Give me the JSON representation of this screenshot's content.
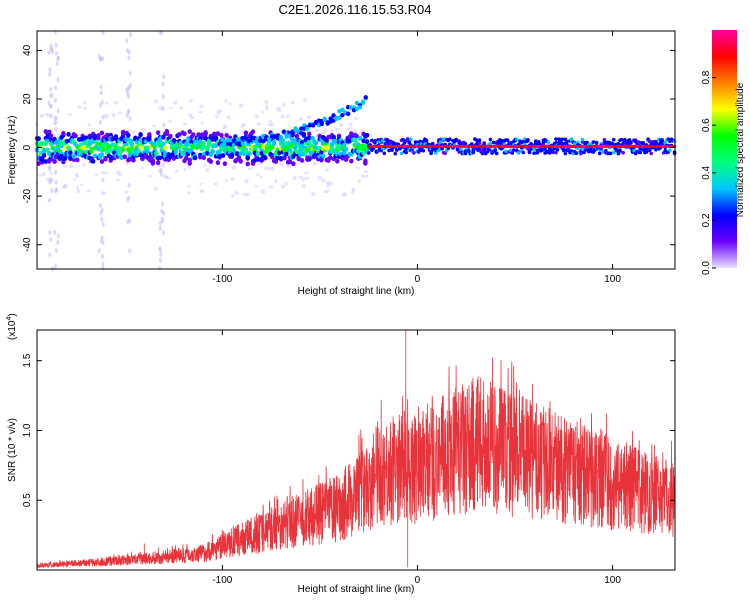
{
  "figure_title": "C2E1.2026.116.15.53.R04",
  "chart_data": [
    {
      "type": "heatmap",
      "name": "spectrogram",
      "xlabel": "Height of straight line (km)",
      "ylabel": "Frequency (Hz)",
      "xlim": [
        -195,
        132
      ],
      "ylim": [
        -50,
        48
      ],
      "xticks": [
        "-100",
        "0",
        "100"
      ],
      "xtick_values": [
        -100,
        0,
        100
      ],
      "yticks": [
        "40",
        "20",
        "0",
        "-20",
        "-40"
      ],
      "ytick_values": [
        40,
        20,
        0,
        -20,
        -40
      ],
      "colorbar": {
        "label": "Normalized spectral amplitude",
        "range": [
          0,
          1
        ],
        "ticks": [
          "0.0",
          "0.2",
          "0.4",
          "0.6",
          "0.8"
        ],
        "tick_values": [
          0.0,
          0.2,
          0.4,
          0.6,
          0.8
        ],
        "colormap": [
          "#e8e0ff",
          "#6a00ff",
          "#0000ff",
          "#00c8ff",
          "#00ff80",
          "#00ff00",
          "#ffff00",
          "#ff8000",
          "#ff0000",
          "#ff00a0"
        ]
      },
      "description_band": {
        "noisy_region_x": [
          -195,
          -25
        ],
        "rising_branch_x": [
          -100,
          -25
        ],
        "rising_branch_freq": [
          2,
          20
        ],
        "narrow_line_region_x": [
          -25,
          132
        ],
        "narrow_line_freq": 0.5
      }
    },
    {
      "type": "line",
      "name": "snr",
      "xlabel": "Height of straight line (km)",
      "ylabel": "SNR (10 * v/v)",
      "scale_label": "(x10",
      "scale_exp": "4",
      "xlim": [
        -195,
        132
      ],
      "ylim": [
        0,
        1.72
      ],
      "xticks": [
        "-100",
        "0",
        "100"
      ],
      "xtick_values": [
        -100,
        0,
        100
      ],
      "yticks": [
        "0.5",
        "1.0",
        "1.5"
      ],
      "ytick_values": [
        0.5,
        1.0,
        1.5
      ],
      "color": "#e8333a",
      "envelope": [
        {
          "x": -195,
          "y": 0.03
        },
        {
          "x": -170,
          "y": 0.05
        },
        {
          "x": -140,
          "y": 0.08
        },
        {
          "x": -110,
          "y": 0.12
        },
        {
          "x": -90,
          "y": 0.22
        },
        {
          "x": -70,
          "y": 0.32
        },
        {
          "x": -55,
          "y": 0.38
        },
        {
          "x": -40,
          "y": 0.45
        },
        {
          "x": -30,
          "y": 0.55
        },
        {
          "x": -20,
          "y": 0.7
        },
        {
          "x": -10,
          "y": 0.72
        },
        {
          "x": -6,
          "y": 0.75
        },
        {
          "x": 0,
          "y": 0.72
        },
        {
          "x": 10,
          "y": 0.8
        },
        {
          "x": 20,
          "y": 0.85
        },
        {
          "x": 30,
          "y": 0.9
        },
        {
          "x": 45,
          "y": 0.86
        },
        {
          "x": 60,
          "y": 0.78
        },
        {
          "x": 80,
          "y": 0.7
        },
        {
          "x": 100,
          "y": 0.62
        },
        {
          "x": 120,
          "y": 0.55
        },
        {
          "x": 132,
          "y": 0.52
        }
      ],
      "spikes": [
        {
          "x": -6,
          "y": 1.72
        },
        {
          "x": -5,
          "y": 0.02
        },
        {
          "x": 28,
          "y": 1.33
        },
        {
          "x": -140,
          "y": 0.19
        }
      ]
    }
  ]
}
